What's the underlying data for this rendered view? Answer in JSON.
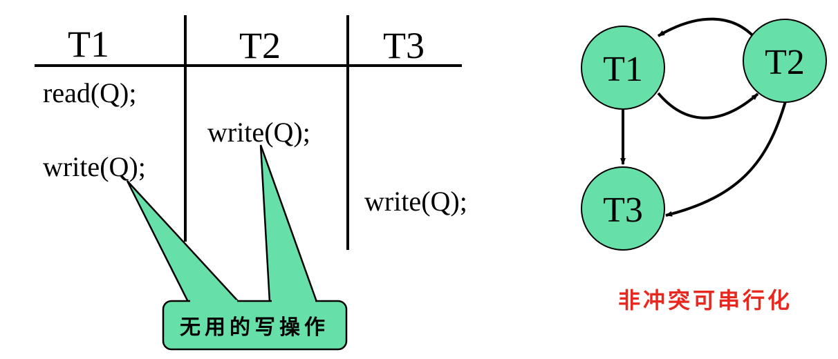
{
  "schedule": {
    "headers": [
      "T1",
      "T2",
      "T3"
    ],
    "ops": [
      {
        "txn": "T1",
        "text": "read(Q);"
      },
      {
        "txn": "T2",
        "text": "write(Q);"
      },
      {
        "txn": "T1",
        "text": "write(Q);"
      },
      {
        "txn": "T3",
        "text": "write(Q);"
      }
    ]
  },
  "callout": {
    "label": "无用的写操作"
  },
  "graph": {
    "nodes": [
      {
        "id": "T1",
        "label": "T1"
      },
      {
        "id": "T2",
        "label": "T2"
      },
      {
        "id": "T3",
        "label": "T3"
      }
    ],
    "edges": [
      {
        "from": "T2",
        "to": "T1"
      },
      {
        "from": "T1",
        "to": "T2"
      },
      {
        "from": "T1",
        "to": "T3"
      },
      {
        "from": "T2",
        "to": "T3"
      }
    ],
    "caption": "非冲突可串行化"
  },
  "colors": {
    "node_fill": "#66E0A8",
    "callout_fill": "#66E0A8",
    "caption": "#E8281E",
    "line": "#000000"
  }
}
